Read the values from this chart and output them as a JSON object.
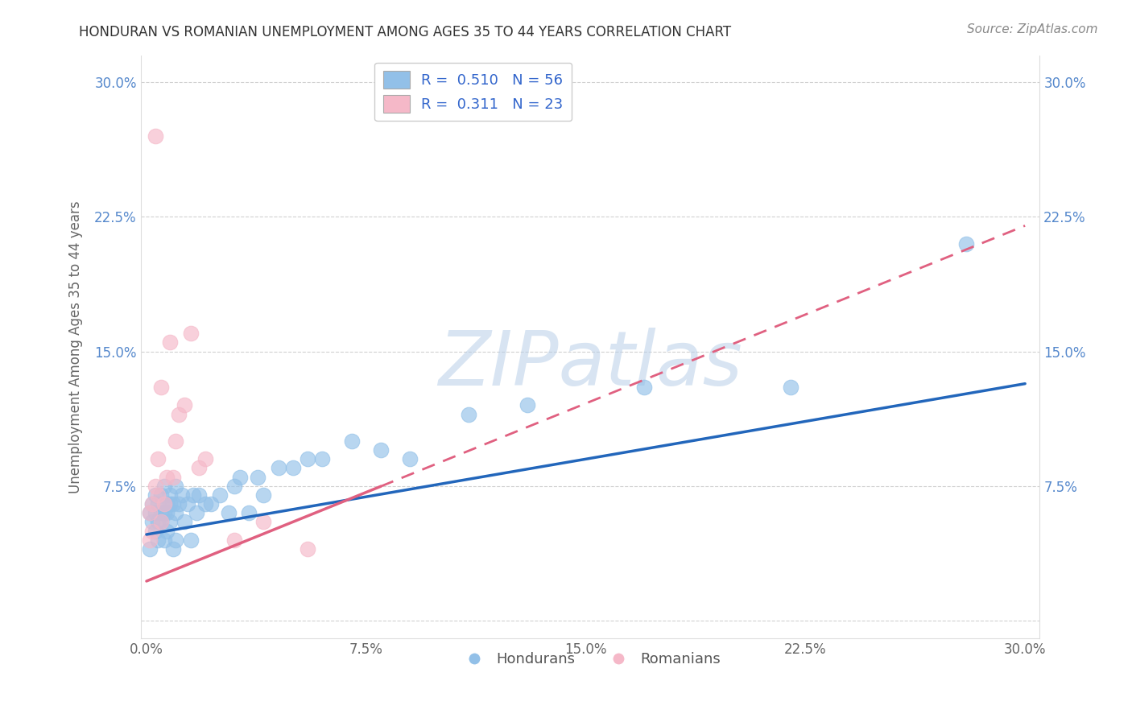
{
  "title": "HONDURAN VS ROMANIAN UNEMPLOYMENT AMONG AGES 35 TO 44 YEARS CORRELATION CHART",
  "source": "Source: ZipAtlas.com",
  "ylabel": "Unemployment Among Ages 35 to 44 years",
  "xlim": [
    -0.002,
    0.305
  ],
  "ylim": [
    -0.01,
    0.315
  ],
  "xtick_positions": [
    0.0,
    0.075,
    0.15,
    0.225,
    0.3
  ],
  "xtick_labels": [
    "0.0%",
    "7.5%",
    "15.0%",
    "22.5%",
    "30.0%"
  ],
  "ytick_positions": [
    0.0,
    0.075,
    0.15,
    0.225,
    0.3
  ],
  "ytick_labels": [
    "",
    "7.5%",
    "15.0%",
    "22.5%",
    "30.0%"
  ],
  "honduran_color": "#92c0e8",
  "romanian_color": "#f5b8c8",
  "honduran_trend_color": "#2266bb",
  "romanian_trend_color": "#e06080",
  "legend_R1": "0.510",
  "legend_N1": "56",
  "legend_R2": "0.311",
  "legend_N2": "23",
  "watermark": "ZIPatlas",
  "honduran_x": [
    0.001,
    0.001,
    0.002,
    0.002,
    0.003,
    0.003,
    0.003,
    0.004,
    0.004,
    0.004,
    0.005,
    0.005,
    0.005,
    0.006,
    0.006,
    0.006,
    0.007,
    0.007,
    0.007,
    0.008,
    0.008,
    0.008,
    0.009,
    0.009,
    0.01,
    0.01,
    0.01,
    0.011,
    0.012,
    0.013,
    0.014,
    0.015,
    0.016,
    0.017,
    0.018,
    0.02,
    0.022,
    0.025,
    0.028,
    0.03,
    0.032,
    0.035,
    0.038,
    0.04,
    0.045,
    0.05,
    0.055,
    0.06,
    0.07,
    0.08,
    0.09,
    0.11,
    0.13,
    0.17,
    0.22,
    0.28
  ],
  "honduran_y": [
    0.04,
    0.06,
    0.055,
    0.065,
    0.05,
    0.06,
    0.07,
    0.055,
    0.065,
    0.045,
    0.06,
    0.055,
    0.07,
    0.045,
    0.06,
    0.075,
    0.065,
    0.05,
    0.06,
    0.07,
    0.055,
    0.065,
    0.04,
    0.065,
    0.075,
    0.06,
    0.045,
    0.065,
    0.07,
    0.055,
    0.065,
    0.045,
    0.07,
    0.06,
    0.07,
    0.065,
    0.065,
    0.07,
    0.06,
    0.075,
    0.08,
    0.06,
    0.08,
    0.07,
    0.085,
    0.085,
    0.09,
    0.09,
    0.1,
    0.095,
    0.09,
    0.115,
    0.12,
    0.13,
    0.13,
    0.21
  ],
  "romanian_x": [
    0.001,
    0.001,
    0.002,
    0.002,
    0.003,
    0.003,
    0.004,
    0.004,
    0.005,
    0.005,
    0.006,
    0.007,
    0.008,
    0.009,
    0.01,
    0.011,
    0.013,
    0.015,
    0.018,
    0.02,
    0.03,
    0.04,
    0.055
  ],
  "romanian_y": [
    0.045,
    0.06,
    0.05,
    0.065,
    0.075,
    0.27,
    0.07,
    0.09,
    0.055,
    0.13,
    0.065,
    0.08,
    0.155,
    0.08,
    0.1,
    0.115,
    0.12,
    0.16,
    0.085,
    0.09,
    0.045,
    0.055,
    0.04
  ],
  "romanian_trend_x_solid_end": 0.08,
  "trend_blue_y0": 0.048,
  "trend_blue_y1": 0.132,
  "trend_pink_y0": 0.022,
  "trend_pink_y1": 0.22
}
